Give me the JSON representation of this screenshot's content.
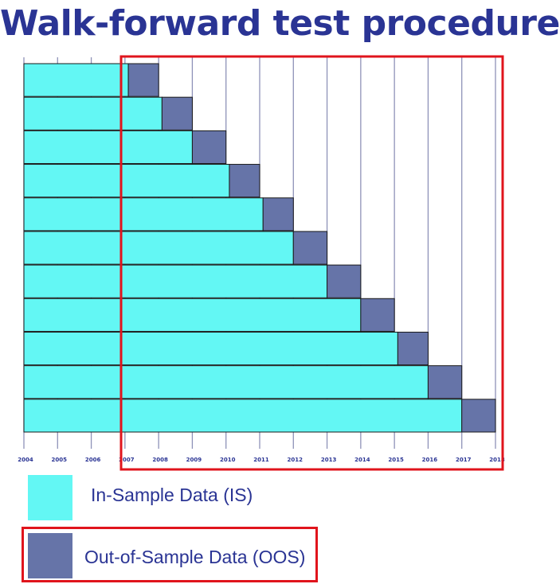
{
  "chart_data": {
    "type": "bar",
    "title": "Walk-forward test procedure",
    "x_ticks": [
      "2004",
      "2005",
      "2006",
      "2007",
      "2008",
      "2009",
      "2010",
      "2011",
      "2012",
      "2013",
      "2014",
      "2015",
      "2016",
      "2017",
      "2018"
    ],
    "x_range": [
      2004,
      2018
    ],
    "series": [
      {
        "name": "In-Sample Data (IS)",
        "color": "#63f7f4",
        "segments": [
          {
            "start": 2004,
            "end": 2007.1
          },
          {
            "start": 2004,
            "end": 2008.1
          },
          {
            "start": 2004,
            "end": 2009.0
          },
          {
            "start": 2004,
            "end": 2010.1
          },
          {
            "start": 2004,
            "end": 2011.1
          },
          {
            "start": 2004,
            "end": 2012.0
          },
          {
            "start": 2004,
            "end": 2013.0
          },
          {
            "start": 2004,
            "end": 2014.0
          },
          {
            "start": 2004,
            "end": 2015.1
          },
          {
            "start": 2004,
            "end": 2016.0
          },
          {
            "start": 2004,
            "end": 2017.0
          }
        ]
      },
      {
        "name": "Out-of-Sample Data (OOS)",
        "color": "#6674a8",
        "segments": [
          {
            "start": 2007.1,
            "end": 2008.0
          },
          {
            "start": 2008.1,
            "end": 2009.0
          },
          {
            "start": 2009.0,
            "end": 2010.0
          },
          {
            "start": 2010.1,
            "end": 2011.0
          },
          {
            "start": 2011.1,
            "end": 2012.0
          },
          {
            "start": 2012.0,
            "end": 2013.0
          },
          {
            "start": 2013.0,
            "end": 2014.0
          },
          {
            "start": 2014.0,
            "end": 2015.0
          },
          {
            "start": 2015.1,
            "end": 2016.0
          },
          {
            "start": 2016.0,
            "end": 2017.0
          },
          {
            "start": 2017.0,
            "end": 2018.0
          }
        ]
      }
    ],
    "grid": true,
    "legend_position": "bottom-left"
  },
  "colors": {
    "title": "#2a3494",
    "grid": "#8e92b8",
    "highlight": "#e0141c"
  }
}
